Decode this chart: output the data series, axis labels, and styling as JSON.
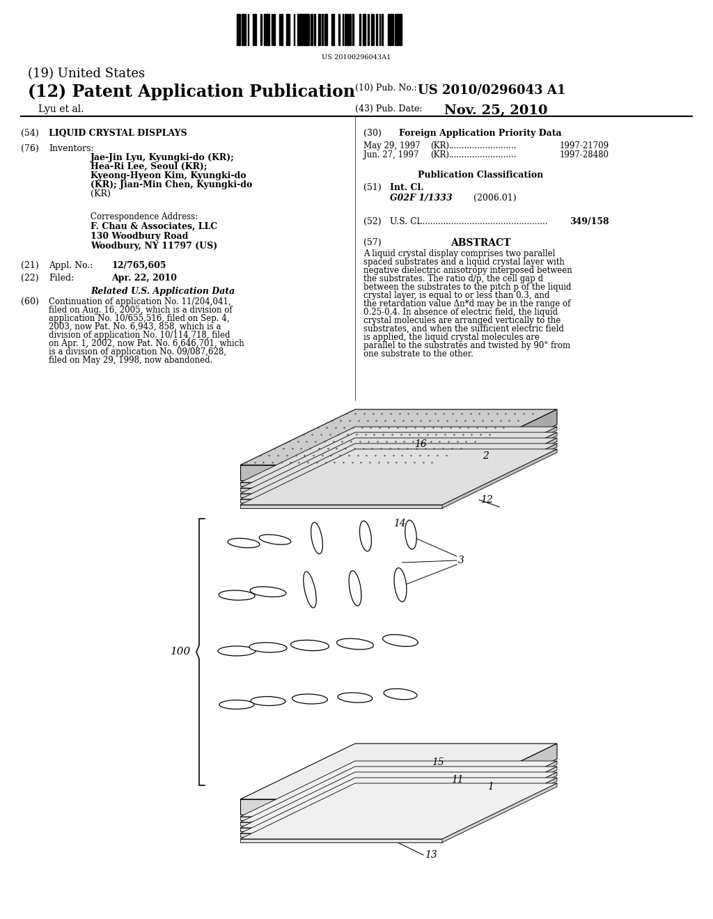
{
  "bg_color": "#ffffff",
  "barcode_text": "US 20100296043A1",
  "title_19": "(19) United States",
  "title_12": "(12) Patent Application Publication",
  "pub_no_label": "(10) Pub. No.:",
  "pub_no": "US 2010/0296043 A1",
  "inventor_line": "Lyu et al.",
  "pub_date_label": "(43) Pub. Date:",
  "pub_date": "Nov. 25, 2010",
  "field_54_label": "(54)",
  "field_54": "LIQUID CRYSTAL DISPLAYS",
  "field_30_label": "(30)",
  "field_30": "Foreign Application Priority Data",
  "field_76_label": "(76)",
  "field_76_title": "Inventors:",
  "field_76_text": "Jae-Jin Lyu, Kyungki-do (KR);\nHea-Ri Lee, Seoul (KR);\nKyeong-Hyeon Kim, Kyungki-do\n(KR); Jian-Min Chen, Kyungki-do\n(KR)",
  "priority_1_date": "May 29, 1997",
  "priority_1_country": "(KR)",
  "priority_1_num": "1997-21709",
  "priority_2_date": "Jun. 27, 1997",
  "priority_2_country": "(KR)",
  "priority_2_num": "1997-28480",
  "pub_class_title": "Publication Classification",
  "field_51_label": "(51)",
  "field_51_title": "Int. Cl.",
  "field_51_class": "G02F 1/1333",
  "field_51_year": "(2006.01)",
  "corr_title": "Correspondence Address:",
  "corr_company": "F. Chau & Associates, LLC",
  "corr_address1": "130 Woodbury Road",
  "corr_address2": "Woodbury, NY 11797 (US)",
  "field_52_label": "(52)",
  "field_52_text": "U.S. Cl.",
  "field_52_num": "349/158",
  "field_21_label": "(21)",
  "field_21_title": "Appl. No.:",
  "field_21_num": "12/765,605",
  "field_57_label": "(57)",
  "field_57_title": "ABSTRACT",
  "abstract_text": "A liquid crystal display comprises two parallel spaced substrates and a liquid crystal layer with negative dielectric anisotropy interposed between the substrates. The ratio d/p, the cell gap d between the substrates to the pitch p of the liquid crystal layer, is equal to or less than 0.3, and the retardation value Δn*d may be in the range of 0.25-0.4. In absence of electric field, the liquid crystal molecules are arranged vertically to the substrates, and when the sufficient electric field is applied, the liquid crystal molecules are parallel to the substrates and twisted by 90° from one substrate to the other.",
  "field_22_label": "(22)",
  "field_22_title": "Filed:",
  "field_22_date": "Apr. 22, 2010",
  "related_title": "Related U.S. Application Data",
  "field_60_label": "(60)",
  "field_60_text": "Continuation of application No. 11/204,041, filed on Aug. 16, 2005, which is a division of application No. 10/655,516, filed on Sep. 4, 2003, now Pat. No. 6,943, 858, which is a division of application No. 10/114,718, filed on Apr. 1, 2002, now Pat. No. 6,646,701, which is a division of application No. 09/087,628, filed on May 29, 1998, now abandoned.",
  "diagram_label_100": "100",
  "diagram_label_1": "1",
  "diagram_label_2": "2",
  "diagram_label_3": "3",
  "diagram_label_11": "11",
  "diagram_label_12": "12",
  "diagram_label_13": "13",
  "diagram_label_14": "14",
  "diagram_label_15": "15",
  "diagram_label_16": "16",
  "mol_data": [
    [
      350,
      780,
      85,
      13,
      46
    ],
    [
      395,
      775,
      82,
      13,
      46
    ],
    [
      455,
      773,
      10,
      15,
      46
    ],
    [
      525,
      770,
      8,
      16,
      44
    ],
    [
      590,
      768,
      6,
      16,
      42
    ],
    [
      340,
      855,
      88,
      14,
      52
    ],
    [
      385,
      850,
      85,
      14,
      52
    ],
    [
      445,
      847,
      12,
      15,
      53
    ],
    [
      510,
      845,
      9,
      16,
      51
    ],
    [
      575,
      840,
      7,
      17,
      49
    ],
    [
      340,
      935,
      90,
      14,
      54
    ],
    [
      385,
      930,
      88,
      14,
      54
    ],
    [
      445,
      927,
      87,
      15,
      55
    ],
    [
      510,
      925,
      85,
      15,
      53
    ],
    [
      575,
      920,
      83,
      16,
      51
    ],
    [
      340,
      1012,
      90,
      13,
      50
    ],
    [
      385,
      1007,
      89,
      13,
      50
    ],
    [
      445,
      1004,
      88,
      14,
      51
    ],
    [
      510,
      1002,
      87,
      14,
      50
    ],
    [
      575,
      997,
      85,
      15,
      48
    ]
  ]
}
